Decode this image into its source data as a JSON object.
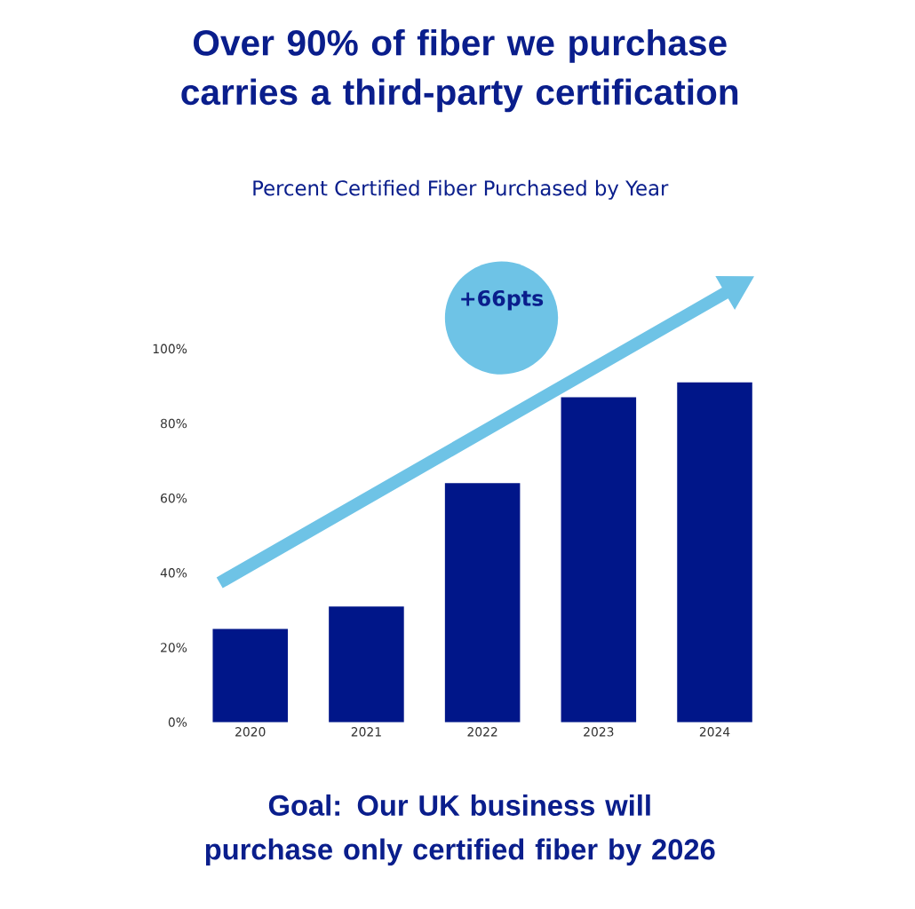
{
  "chart_data": {
    "type": "bar",
    "title": "Over 90% of fiber we purchase carries a third-party certification",
    "subtitle": "Percent Certified Fiber Purchased by Year",
    "categories": [
      "2020",
      "2021",
      "2022",
      "2023",
      "2024"
    ],
    "values": [
      25,
      31,
      64,
      87,
      91
    ],
    "color": "#001689",
    "ylim": [
      0,
      100
    ],
    "yticks": [
      {
        "value": 0,
        "label": "0%"
      },
      {
        "value": 20,
        "label": "20%"
      },
      {
        "value": 40,
        "label": "40%"
      },
      {
        "value": 60,
        "label": "60%"
      },
      {
        "value": 80,
        "label": "80%"
      },
      {
        "value": 100,
        "label": "100%"
      }
    ],
    "grid": false,
    "annotations": [
      "+66pts",
      "Goal: Our UK business will purchase only certified fiber by 2026"
    ]
  }
}
